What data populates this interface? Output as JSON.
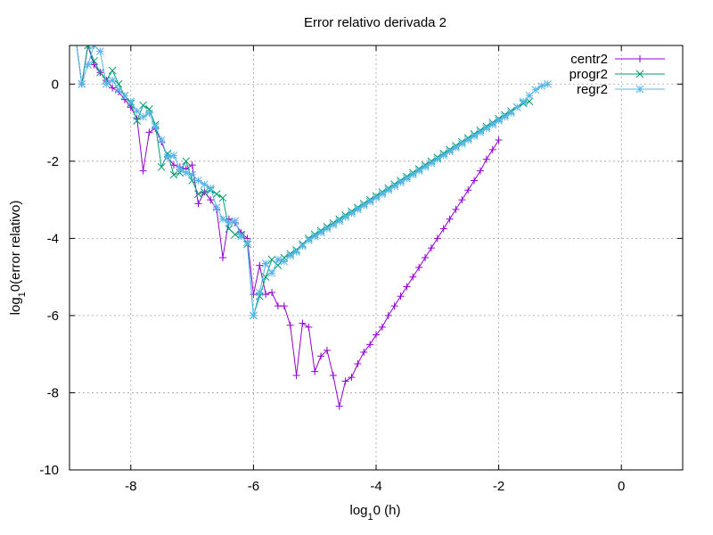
{
  "chart_data": {
    "type": "line",
    "title": "Error relativo derivada 2",
    "xlabel": {
      "pre": "log",
      "sub": "1",
      "post": "0 (h)"
    },
    "ylabel": {
      "pre": "log",
      "sub": "1",
      "post": "0(error relativo)"
    },
    "xlim": [
      -9,
      1
    ],
    "ylim": [
      -10,
      1
    ],
    "xticks": [
      -8,
      -6,
      -4,
      -2,
      0
    ],
    "yticks": [
      -10,
      -8,
      -6,
      -4,
      -2,
      0
    ],
    "grid": true,
    "legend_position": "top-right",
    "series": [
      {
        "name": "centr2",
        "color": "#9400d3",
        "marker": "plus",
        "points": [
          [
            -8.9,
            1.2
          ],
          [
            -8.8,
            0.0
          ],
          [
            -8.7,
            1.0
          ],
          [
            -8.6,
            0.5
          ],
          [
            -8.5,
            0.3
          ],
          [
            -8.4,
            0.1
          ],
          [
            -8.3,
            -0.1
          ],
          [
            -8.2,
            -0.2
          ],
          [
            -8.1,
            -0.4
          ],
          [
            -8.0,
            -0.6
          ],
          [
            -7.9,
            -0.9
          ],
          [
            -7.8,
            -2.25
          ],
          [
            -7.7,
            -1.25
          ],
          [
            -7.6,
            -1.15
          ],
          [
            -7.5,
            -1.5
          ],
          [
            -7.4,
            -1.9
          ],
          [
            -7.3,
            -2.1
          ],
          [
            -7.2,
            -2.15
          ],
          [
            -7.1,
            -2.2
          ],
          [
            -7.0,
            -2.1
          ],
          [
            -6.9,
            -3.1
          ],
          [
            -6.8,
            -2.8
          ],
          [
            -6.7,
            -3.0
          ],
          [
            -6.6,
            -3.25
          ],
          [
            -6.5,
            -4.5
          ],
          [
            -6.4,
            -3.5
          ],
          [
            -6.3,
            -3.6
          ],
          [
            -6.2,
            -3.85
          ],
          [
            -6.1,
            -4.0
          ],
          [
            -6.0,
            -5.45
          ],
          [
            -5.9,
            -4.7
          ],
          [
            -5.8,
            -5.45
          ],
          [
            -5.7,
            -5.4
          ],
          [
            -5.6,
            -5.75
          ],
          [
            -5.5,
            -5.75
          ],
          [
            -5.4,
            -6.25
          ],
          [
            -5.3,
            -7.55
          ],
          [
            -5.2,
            -6.2
          ],
          [
            -5.1,
            -6.3
          ],
          [
            -5.0,
            -7.45
          ],
          [
            -4.9,
            -7.05
          ],
          [
            -4.8,
            -6.9
          ],
          [
            -4.7,
            -7.55
          ],
          [
            -4.6,
            -8.35
          ],
          [
            -4.5,
            -7.7
          ],
          [
            -4.4,
            -7.6
          ],
          [
            -4.3,
            -7.25
          ],
          [
            -4.2,
            -6.95
          ],
          [
            -4.1,
            -6.75
          ],
          [
            -4.0,
            -6.5
          ],
          [
            -3.9,
            -6.3
          ],
          [
            -3.8,
            -6.0
          ],
          [
            -3.7,
            -5.75
          ],
          [
            -3.6,
            -5.5
          ],
          [
            -3.5,
            -5.25
          ],
          [
            -3.4,
            -5.0
          ],
          [
            -3.3,
            -4.75
          ],
          [
            -3.2,
            -4.5
          ],
          [
            -3.1,
            -4.25
          ],
          [
            -3.0,
            -4.0
          ],
          [
            -2.9,
            -3.75
          ],
          [
            -2.8,
            -3.5
          ],
          [
            -2.7,
            -3.25
          ],
          [
            -2.6,
            -3.0
          ],
          [
            -2.5,
            -2.75
          ],
          [
            -2.4,
            -2.5
          ],
          [
            -2.3,
            -2.25
          ],
          [
            -2.2,
            -1.95
          ],
          [
            -2.1,
            -1.7
          ],
          [
            -2.0,
            -1.45
          ]
        ]
      },
      {
        "name": "progr2",
        "color": "#009e73",
        "marker": "cross",
        "points": [
          [
            -8.9,
            1.2
          ],
          [
            -8.8,
            0.0
          ],
          [
            -8.7,
            1.0
          ],
          [
            -8.6,
            0.6
          ],
          [
            -8.5,
            0.3
          ],
          [
            -8.4,
            0.1
          ],
          [
            -8.3,
            0.35
          ],
          [
            -8.2,
            0.0
          ],
          [
            -8.1,
            -0.3
          ],
          [
            -8.0,
            -0.5
          ],
          [
            -7.9,
            -0.95
          ],
          [
            -7.8,
            -0.55
          ],
          [
            -7.7,
            -0.65
          ],
          [
            -7.6,
            -1.05
          ],
          [
            -7.5,
            -2.15
          ],
          [
            -7.4,
            -1.8
          ],
          [
            -7.3,
            -2.35
          ],
          [
            -7.2,
            -2.3
          ],
          [
            -7.1,
            -2.0
          ],
          [
            -7.0,
            -2.5
          ],
          [
            -6.9,
            -2.85
          ],
          [
            -6.8,
            -2.8
          ],
          [
            -6.7,
            -2.75
          ],
          [
            -6.6,
            -2.85
          ],
          [
            -6.5,
            -2.95
          ],
          [
            -6.4,
            -3.75
          ],
          [
            -6.3,
            -3.9
          ],
          [
            -6.2,
            -3.9
          ],
          [
            -6.1,
            -4.15
          ],
          [
            -6.0,
            -6.0
          ],
          [
            -5.9,
            -5.5
          ],
          [
            -5.8,
            -5.0
          ],
          [
            -5.7,
            -4.55
          ],
          [
            -5.6,
            -4.7
          ],
          [
            -5.5,
            -4.5
          ],
          [
            -5.4,
            -4.4
          ],
          [
            -5.3,
            -4.3
          ],
          [
            -5.2,
            -4.15
          ],
          [
            -5.1,
            -4.0
          ],
          [
            -5.0,
            -3.9
          ],
          [
            -4.9,
            -3.8
          ],
          [
            -4.8,
            -3.7
          ],
          [
            -4.7,
            -3.6
          ],
          [
            -4.6,
            -3.5
          ],
          [
            -4.5,
            -3.4
          ],
          [
            -4.4,
            -3.3
          ],
          [
            -4.3,
            -3.2
          ],
          [
            -4.2,
            -3.1
          ],
          [
            -4.1,
            -3.0
          ],
          [
            -4.0,
            -2.9
          ],
          [
            -3.9,
            -2.8
          ],
          [
            -3.8,
            -2.7
          ],
          [
            -3.7,
            -2.6
          ],
          [
            -3.6,
            -2.5
          ],
          [
            -3.5,
            -2.4
          ],
          [
            -3.4,
            -2.3
          ],
          [
            -3.3,
            -2.2
          ],
          [
            -3.2,
            -2.1
          ],
          [
            -3.1,
            -2.0
          ],
          [
            -3.0,
            -1.9
          ],
          [
            -2.9,
            -1.8
          ],
          [
            -2.8,
            -1.7
          ],
          [
            -2.7,
            -1.6
          ],
          [
            -2.6,
            -1.5
          ],
          [
            -2.5,
            -1.4
          ],
          [
            -2.4,
            -1.3
          ],
          [
            -2.3,
            -1.2
          ],
          [
            -2.2,
            -1.1
          ],
          [
            -2.1,
            -1.0
          ],
          [
            -2.0,
            -0.9
          ],
          [
            -1.9,
            -0.8
          ],
          [
            -1.8,
            -0.7
          ],
          [
            -1.7,
            -0.6
          ],
          [
            -1.6,
            -0.5
          ],
          [
            -1.5,
            -0.45
          ]
        ]
      },
      {
        "name": "regr2",
        "color": "#56b4e9",
        "marker": "star",
        "points": [
          [
            -8.9,
            1.2
          ],
          [
            -8.8,
            0.0
          ],
          [
            -8.7,
            0.5
          ],
          [
            -8.6,
            1.0
          ],
          [
            -8.5,
            0.85
          ],
          [
            -8.4,
            0.0
          ],
          [
            -8.3,
            0.1
          ],
          [
            -8.2,
            -0.15
          ],
          [
            -8.1,
            -0.3
          ],
          [
            -8.0,
            -0.45
          ],
          [
            -7.9,
            -0.7
          ],
          [
            -7.8,
            -0.85
          ],
          [
            -7.7,
            -0.75
          ],
          [
            -7.6,
            -1.1
          ],
          [
            -7.5,
            -1.45
          ],
          [
            -7.4,
            -1.9
          ],
          [
            -7.3,
            -1.85
          ],
          [
            -7.2,
            -2.2
          ],
          [
            -7.1,
            -2.3
          ],
          [
            -7.0,
            -2.35
          ],
          [
            -6.9,
            -2.5
          ],
          [
            -6.8,
            -2.6
          ],
          [
            -6.7,
            -2.7
          ],
          [
            -6.6,
            -3.2
          ],
          [
            -6.5,
            -3.5
          ],
          [
            -6.4,
            -3.6
          ],
          [
            -6.3,
            -3.55
          ],
          [
            -6.2,
            -3.95
          ],
          [
            -6.1,
            -4.1
          ],
          [
            -6.0,
            -6.0
          ],
          [
            -5.9,
            -5.4
          ],
          [
            -5.8,
            -4.65
          ],
          [
            -5.7,
            -4.9
          ],
          [
            -5.6,
            -4.55
          ],
          [
            -5.5,
            -4.6
          ],
          [
            -5.4,
            -4.45
          ],
          [
            -5.3,
            -4.35
          ],
          [
            -5.2,
            -4.2
          ],
          [
            -5.1,
            -4.05
          ],
          [
            -5.0,
            -3.95
          ],
          [
            -4.9,
            -3.85
          ],
          [
            -4.8,
            -3.75
          ],
          [
            -4.7,
            -3.65
          ],
          [
            -4.6,
            -3.55
          ],
          [
            -4.5,
            -3.45
          ],
          [
            -4.4,
            -3.35
          ],
          [
            -4.3,
            -3.25
          ],
          [
            -4.2,
            -3.15
          ],
          [
            -4.1,
            -3.05
          ],
          [
            -4.0,
            -2.95
          ],
          [
            -3.9,
            -2.85
          ],
          [
            -3.8,
            -2.75
          ],
          [
            -3.7,
            -2.65
          ],
          [
            -3.6,
            -2.55
          ],
          [
            -3.5,
            -2.45
          ],
          [
            -3.4,
            -2.35
          ],
          [
            -3.3,
            -2.25
          ],
          [
            -3.2,
            -2.15
          ],
          [
            -3.1,
            -2.05
          ],
          [
            -3.0,
            -1.95
          ],
          [
            -2.9,
            -1.85
          ],
          [
            -2.8,
            -1.75
          ],
          [
            -2.7,
            -1.65
          ],
          [
            -2.6,
            -1.55
          ],
          [
            -2.5,
            -1.45
          ],
          [
            -2.4,
            -1.35
          ],
          [
            -2.3,
            -1.25
          ],
          [
            -2.2,
            -1.15
          ],
          [
            -2.1,
            -1.05
          ],
          [
            -2.0,
            -0.95
          ],
          [
            -1.9,
            -0.85
          ],
          [
            -1.8,
            -0.75
          ],
          [
            -1.7,
            -0.6
          ],
          [
            -1.6,
            -0.45
          ],
          [
            -1.5,
            -0.3
          ],
          [
            -1.4,
            -0.15
          ],
          [
            -1.3,
            -0.05
          ],
          [
            -1.2,
            0.0
          ]
        ]
      }
    ]
  }
}
